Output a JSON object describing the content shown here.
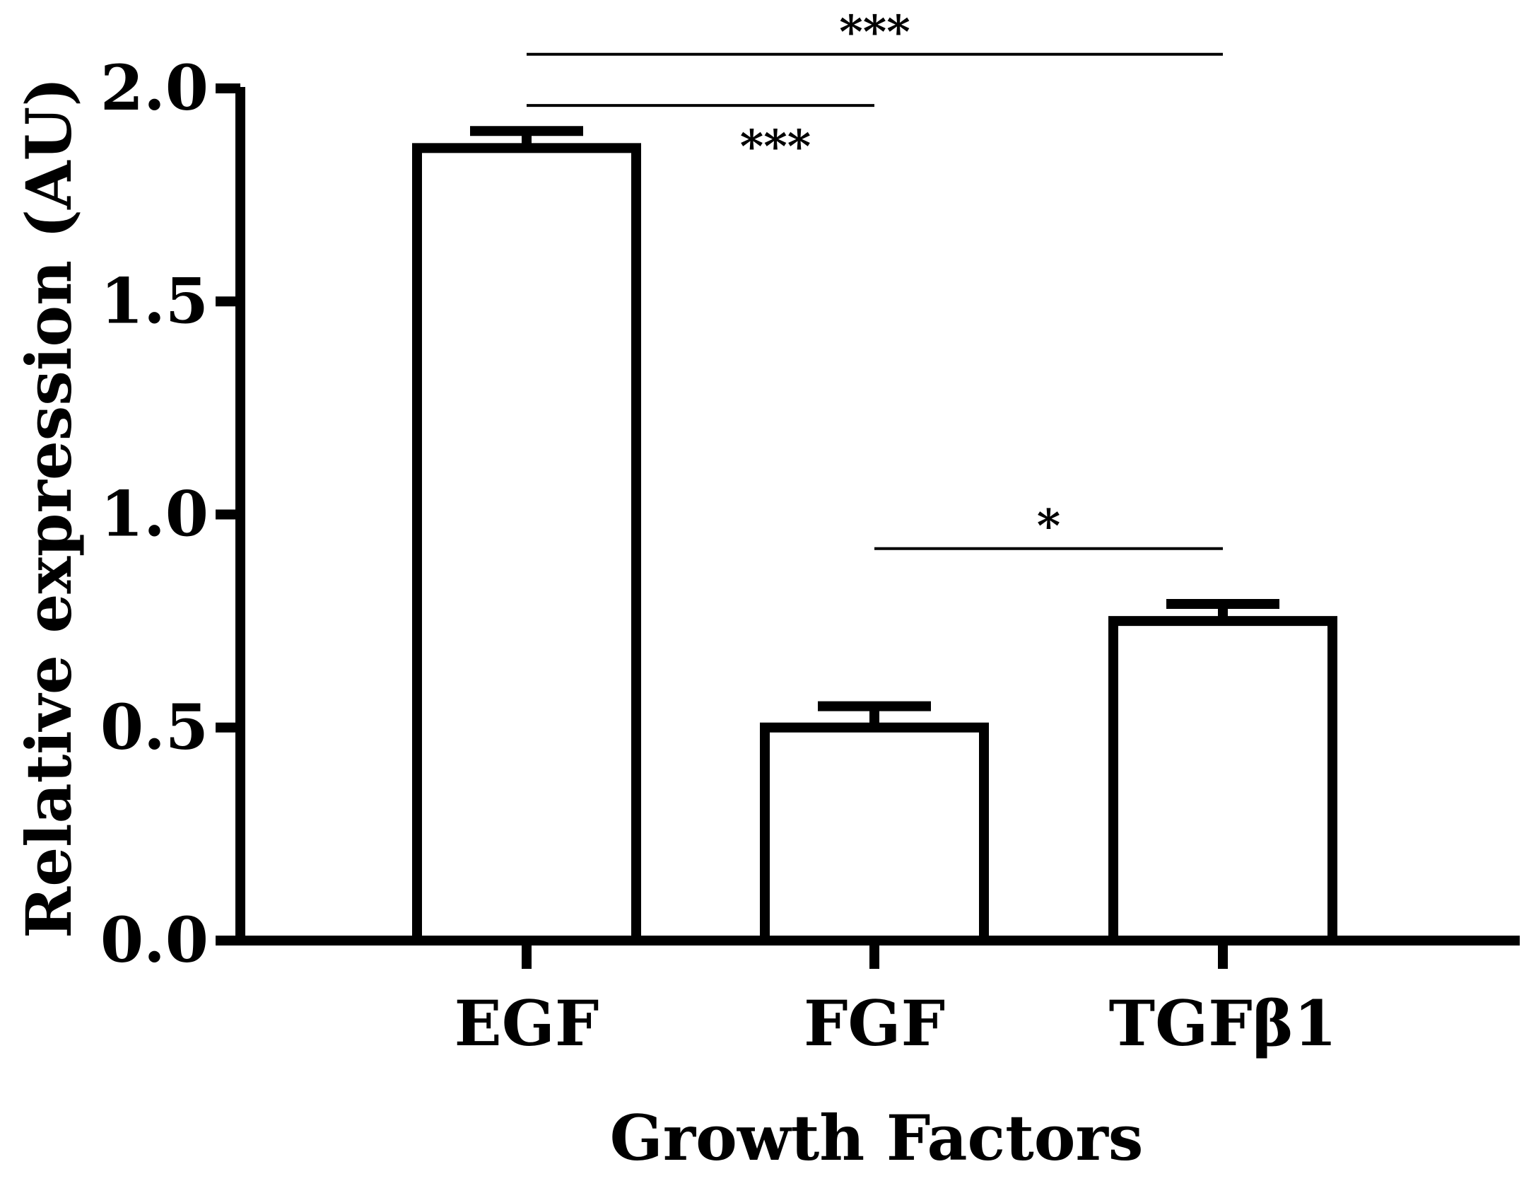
{
  "chart_data": {
    "type": "bar",
    "title": "",
    "xlabel": "Growth Factors",
    "ylabel": "Relative expression (AU)",
    "ylim": [
      0,
      2.0
    ],
    "yticks": [
      {
        "value": 0.0,
        "label": "0.0"
      },
      {
        "value": 0.5,
        "label": "0.5"
      },
      {
        "value": 1.0,
        "label": "1.0"
      },
      {
        "value": 1.5,
        "label": "1.5"
      },
      {
        "value": 2.0,
        "label": "2.0"
      }
    ],
    "categories": [
      "EGF",
      "FGF",
      "TGFβ1"
    ],
    "values": [
      1.86,
      0.5,
      0.75
    ],
    "errors": [
      0.04,
      0.05,
      0.04
    ],
    "grid": false,
    "bar_fill": "#ffffff",
    "bar_stroke": "#000000",
    "significance": [
      {
        "from": 0,
        "to": 2,
        "level": 2.08,
        "label": "***",
        "label_pos": "above"
      },
      {
        "from": 0,
        "to": 1,
        "level": 1.96,
        "label": "***",
        "label_pos": "below-right"
      },
      {
        "from": 1,
        "to": 2,
        "level": 0.92,
        "label": "*",
        "label_pos": "above"
      }
    ]
  }
}
